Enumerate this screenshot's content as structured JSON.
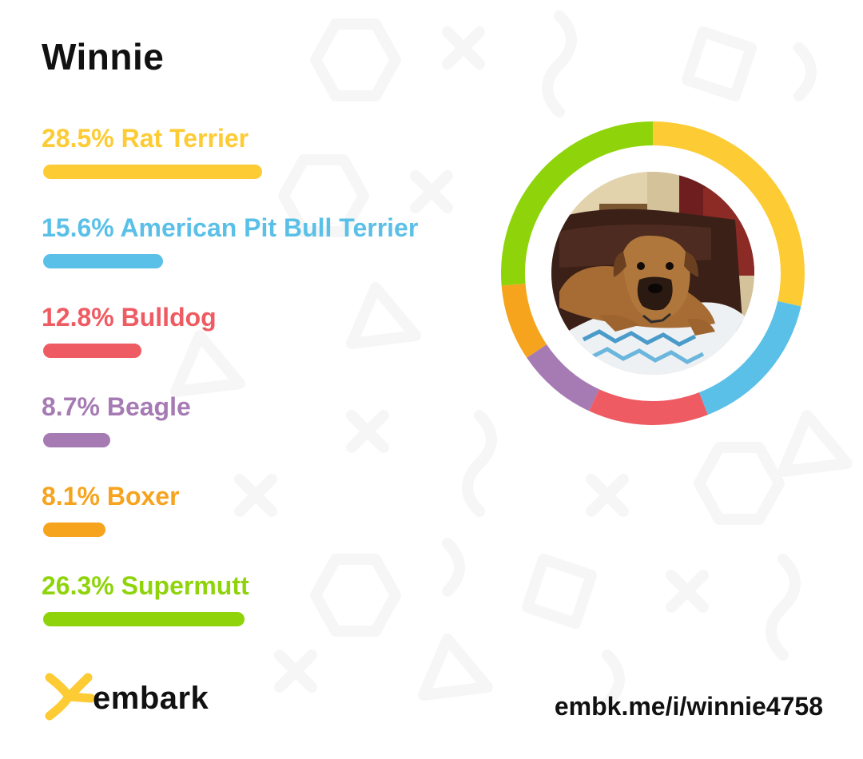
{
  "dog": {
    "name": "Winnie"
  },
  "chart_data": {
    "type": "donut",
    "series": [
      {
        "breed": "Rat Terrier",
        "percent": 28.5,
        "label": "28.5% Rat Terrier",
        "color": "#fdcb33"
      },
      {
        "breed": "American Pit Bull Terrier",
        "percent": 15.6,
        "label": "15.6% American Pit Bull Terrier",
        "color": "#5bc0e8"
      },
      {
        "breed": "Bulldog",
        "percent": 12.8,
        "label": "12.8% Bulldog",
        "color": "#ef5b62"
      },
      {
        "breed": "Beagle",
        "percent": 8.7,
        "label": "8.7% Beagle",
        "color": "#a67bb4"
      },
      {
        "breed": "Boxer",
        "percent": 8.1,
        "label": "8.1% Boxer",
        "color": "#f6a31e"
      },
      {
        "breed": "Supermutt",
        "percent": 26.3,
        "label": "26.3% Supermutt",
        "color": "#8fd40b"
      }
    ]
  },
  "branding": {
    "logo_text": "embark",
    "logo_color": "#fdcb33"
  },
  "share": {
    "url": "embk.me/i/winnie4758"
  }
}
